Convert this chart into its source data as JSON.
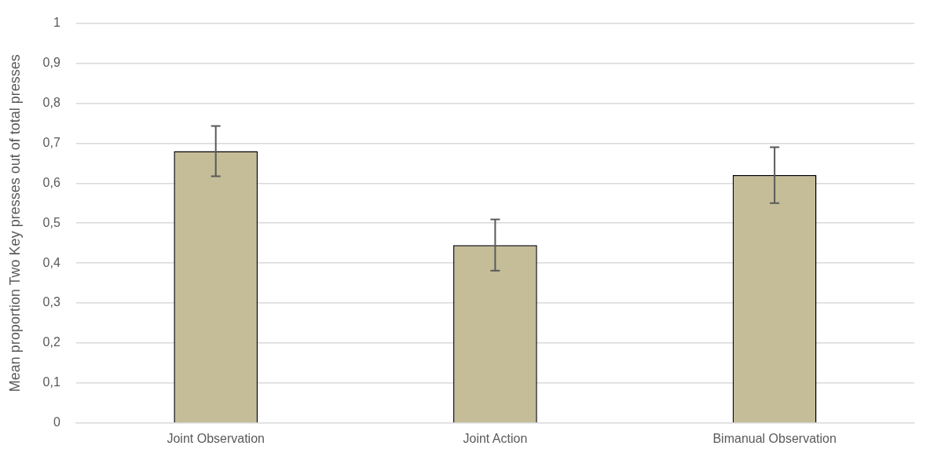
{
  "chart_data": {
    "type": "bar",
    "ylabel": "Mean proportion Two Key presses out of total presses",
    "categories": [
      "Joint Observation",
      "Joint Action",
      "Bimanual Observation"
    ],
    "values": [
      0.68,
      0.445,
      0.62
    ],
    "errors": [
      0.063,
      0.064,
      0.07
    ],
    "color": "#c4bd97",
    "ylim": [
      0,
      1
    ],
    "yticks": [
      0,
      {
        "value": 0.1,
        "label": "0,1"
      },
      {
        "value": 0.2,
        "label": "0,2"
      },
      {
        "value": 0.3,
        "label": "0,3"
      },
      {
        "value": 0.4,
        "label": "0,4"
      },
      {
        "value": 0.5,
        "label": "0,5"
      },
      {
        "value": 0.6,
        "label": "0,6"
      },
      {
        "value": 0.7,
        "label": "0,7"
      },
      {
        "value": 0.8,
        "label": "0,8"
      },
      {
        "value": 0.9,
        "label": "0,9"
      },
      1
    ],
    "grid": "y"
  }
}
